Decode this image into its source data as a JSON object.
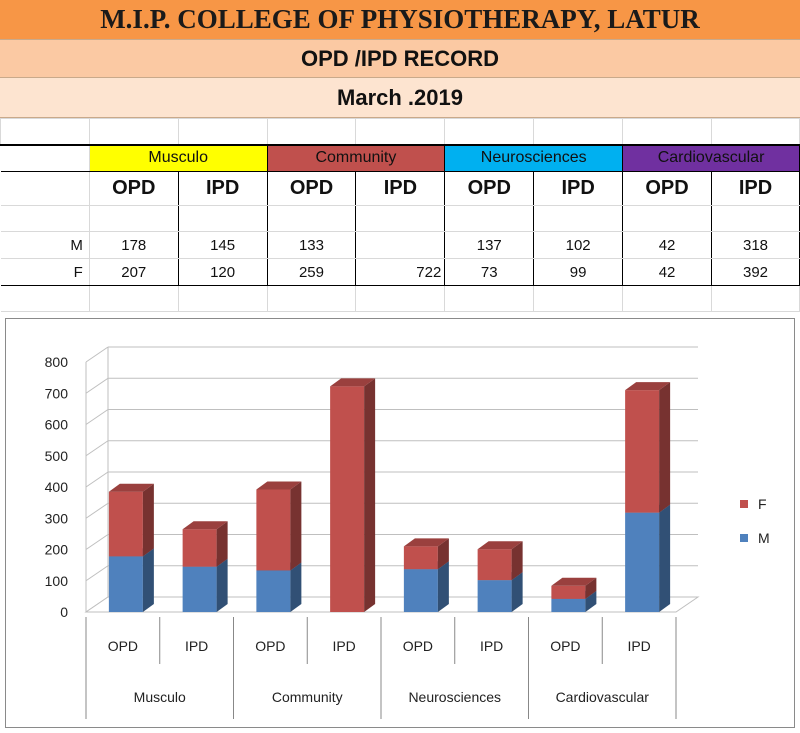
{
  "header": {
    "college": "M.I.P. COLLEGE OF PHYSIOTHERAPY, LATUR",
    "record": "OPD /IPD RECORD",
    "month": "March .2019"
  },
  "table": {
    "categories": [
      {
        "name": "Musculo",
        "color": "#ffff00"
      },
      {
        "name": "Community",
        "color": "#c0504d"
      },
      {
        "name": "Neurosciences",
        "color": "#00b0f0"
      },
      {
        "name": "Cardiovascular",
        "color": "#7030a0"
      }
    ],
    "subheaders": [
      "OPD",
      "IPD",
      "OPD",
      "IPD",
      "OPD",
      "IPD",
      "OPD",
      "IPD"
    ],
    "rows": [
      {
        "label": "M",
        "values": [
          "178",
          "145",
          "133",
          "",
          "137",
          "102",
          "42",
          "318"
        ]
      },
      {
        "label": "F",
        "values": [
          "207",
          "120",
          "259",
          "722",
          "73",
          "99",
          "42",
          "392"
        ]
      }
    ]
  },
  "chart_data": {
    "type": "bar",
    "stacked": true,
    "categories": [
      "OPD",
      "IPD",
      "OPD",
      "IPD",
      "OPD",
      "IPD",
      "OPD",
      "IPD"
    ],
    "groups": [
      "Musculo",
      "Community",
      "Neurosciences",
      "Cardiovascular"
    ],
    "series": [
      {
        "name": "M",
        "color": "#4f81bd",
        "values": [
          178,
          145,
          133,
          0,
          137,
          102,
          42,
          318
        ]
      },
      {
        "name": "F",
        "color": "#c0504d",
        "values": [
          207,
          120,
          259,
          722,
          73,
          99,
          42,
          392
        ]
      }
    ],
    "y_ticks": [
      "0",
      "100",
      "200",
      "300",
      "400",
      "500",
      "600",
      "700",
      "800"
    ],
    "ylim": [
      0,
      800
    ],
    "legend": [
      "F",
      "M"
    ],
    "legend_position": "right",
    "grid": true,
    "style": "3d"
  }
}
